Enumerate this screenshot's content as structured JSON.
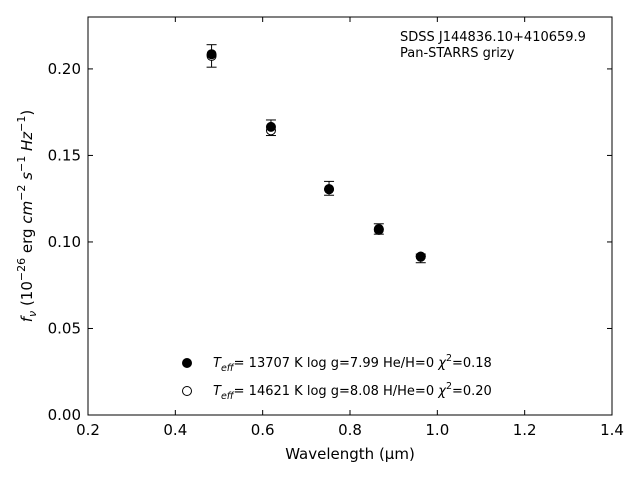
{
  "chart_data": {
    "type": "scatter",
    "xlabel": "Wavelength (μm)",
    "ylabel": "f_ν (10^-26 erg cm^-2 s^-1 Hz^-1)",
    "xlim": [
      0.2,
      1.4
    ],
    "ylim": [
      0.0,
      0.23
    ],
    "x_ticks": [
      "0.2",
      "0.4",
      "0.6",
      "0.8",
      "1.0",
      "1.2",
      "1.4"
    ],
    "y_ticks": [
      "0.00",
      "0.05",
      "0.10",
      "0.15",
      "0.20"
    ],
    "x_tick_values": [
      0.2,
      0.4,
      0.6,
      0.8,
      1.0,
      1.2,
      1.4
    ],
    "y_tick_values": [
      0.0,
      0.05,
      0.1,
      0.15,
      0.2
    ],
    "grid": false,
    "annotation_lines": [
      "SDSS J144836.10+410659.9",
      "Pan-STARRS grizy"
    ],
    "observed": {
      "x": [
        0.483,
        0.619,
        0.752,
        0.866,
        0.962
      ],
      "y": [
        0.2075,
        0.166,
        0.131,
        0.1075,
        0.0905
      ],
      "yerr": [
        0.0065,
        0.0045,
        0.004,
        0.003,
        0.0025
      ]
    },
    "series": [
      {
        "name": "T_eff= 13707 K  log g=7.99  He/H=0  χ²=0.18",
        "marker": "filled-circle",
        "color": "#000000",
        "x": [
          0.483,
          0.619,
          0.752,
          0.866,
          0.962
        ],
        "y": [
          0.2085,
          0.1665,
          0.1305,
          0.1075,
          0.0915
        ]
      },
      {
        "name": "T_eff= 14621 K  log g=8.08  H/He=0  χ²=0.20",
        "marker": "open-circle",
        "color": "#000000",
        "x": [
          0.483,
          0.619,
          0.752,
          0.866,
          0.962
        ],
        "y": [
          0.2075,
          0.1645,
          0.1305,
          0.107,
          0.0915
        ]
      }
    ],
    "legend_position": "lower-center"
  }
}
